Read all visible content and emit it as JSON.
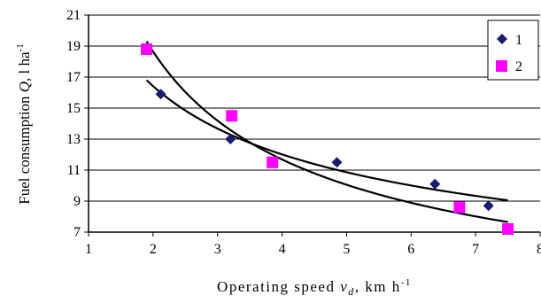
{
  "chart_data": {
    "type": "scatter",
    "title": "",
    "xlabel": {
      "main": "Operating speed",
      "symbol": "v",
      "subscript": "d",
      "unit": ", km h",
      "unit_exp": "-1"
    },
    "ylabel": {
      "main": "Fuel consumption",
      "symbol": "Q",
      "unit": ", l ha",
      "unit_exp": "-1"
    },
    "xlim": [
      1,
      8
    ],
    "ylim": [
      7,
      21
    ],
    "x_ticks": [
      1,
      2,
      3,
      4,
      5,
      6,
      7,
      8
    ],
    "y_ticks": [
      7,
      9,
      11,
      13,
      15,
      17,
      19,
      21
    ],
    "grid": "horizontal",
    "legend_position": "top-right",
    "series": [
      {
        "name": "1",
        "marker": "diamond",
        "color": "#1a1a6e",
        "points": [
          {
            "x": 2.12,
            "y": 15.9
          },
          {
            "x": 3.2,
            "y": 13.0
          },
          {
            "x": 4.85,
            "y": 11.5
          },
          {
            "x": 6.37,
            "y": 10.1
          },
          {
            "x": 7.2,
            "y": 8.7
          }
        ]
      },
      {
        "name": "2",
        "marker": "square",
        "color": "#ff00ff",
        "points": [
          {
            "x": 1.9,
            "y": 18.8
          },
          {
            "x": 3.22,
            "y": 14.5
          },
          {
            "x": 3.85,
            "y": 11.5
          },
          {
            "x": 6.75,
            "y": 8.6
          },
          {
            "x": 7.5,
            "y": 7.2
          }
        ]
      }
    ],
    "trendlines": [
      {
        "name": "trend-1",
        "kind": "power",
        "x_range": [
          1.9,
          7.5
        ],
        "y_range": [
          16.8,
          9.05
        ]
      },
      {
        "name": "trend-2",
        "kind": "power",
        "x_range": [
          1.9,
          7.5
        ],
        "y_range": [
          19.3,
          7.65
        ]
      }
    ]
  }
}
